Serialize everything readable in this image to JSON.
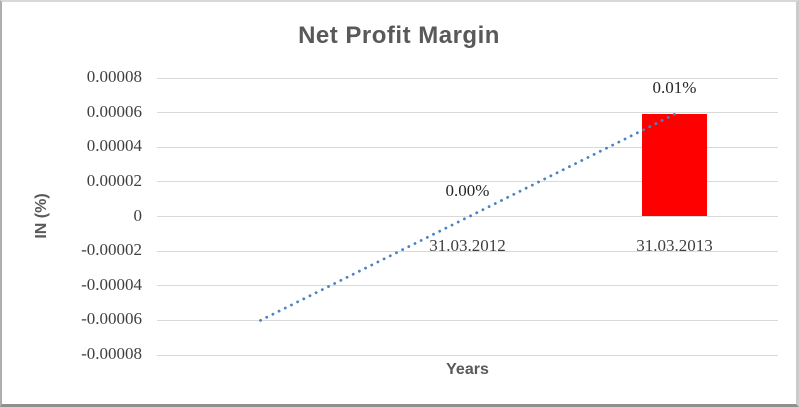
{
  "chart_data": {
    "type": "bar",
    "title": "Net Profit Margin",
    "xlabel": "Years",
    "ylabel": "IN (%)",
    "categories": [
      "",
      "31.03.2012",
      "31.03.2013"
    ],
    "values": [
      null,
      0,
      5.9e-05
    ],
    "data_labels": [
      "",
      "0.00%",
      "0.01%"
    ],
    "ylim": [
      -8e-05,
      8e-05
    ],
    "yticks": [
      "0.00008",
      "0.00006",
      "0.00004",
      "0.00002",
      "0",
      "-0.00002",
      "-0.00004",
      "-0.00006",
      "-0.00008"
    ],
    "grid": true,
    "legend": false,
    "bar_color": "#ff0000",
    "trendline": {
      "type": "linear",
      "style": "dotted",
      "color": "#4a82c4",
      "start_category_index": 0,
      "end_category_index": 2,
      "start_value": -6e-05,
      "end_value": 5.9e-05
    },
    "colors": {
      "title": "#595959",
      "axis_title": "#595959",
      "tick_label": "#3f3f3f",
      "data_label": "#262626",
      "gridline": "#d9d9d9"
    }
  }
}
